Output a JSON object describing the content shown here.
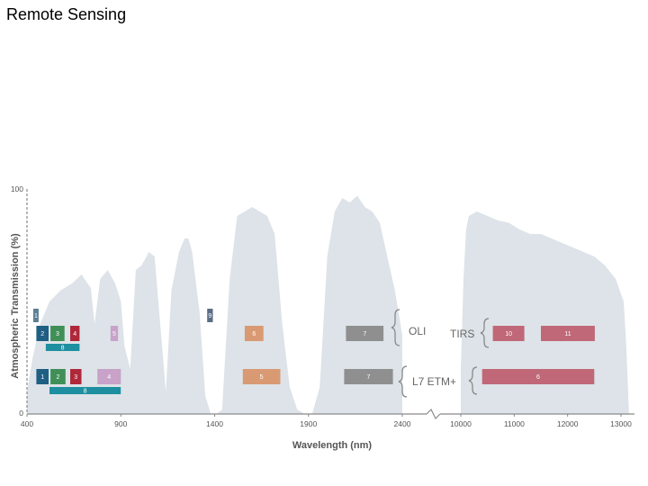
{
  "slide": {
    "title": "Remote Sensing"
  },
  "chart_data": {
    "type": "area",
    "title": "",
    "xlabel": "Wavelength (nm)",
    "ylabel": "Atmospheric Transmission (%)",
    "ylim": [
      0,
      100
    ],
    "y_ticks": [
      "100",
      "0"
    ],
    "x_ticks": [
      "400",
      "900",
      "1400",
      "1900",
      "2400",
      "10000",
      "11000",
      "12000",
      "13000"
    ],
    "x_axis_break": "between 2400 and 10000",
    "colors": {
      "transmission": "#dde3e8",
      "axis": "#8a8a8a"
    },
    "groups": [
      {
        "name": "OLI",
        "row": "top"
      },
      {
        "name": "TIRS",
        "row": "top"
      },
      {
        "name": "L7 ETM+",
        "row": "bottom"
      }
    ],
    "bands": [
      {
        "label": "1",
        "sensor": "OLI",
        "start": 433,
        "end": 453,
        "row": 0,
        "color": "#5b7f95"
      },
      {
        "label": "2",
        "sensor": "OLI",
        "start": 450,
        "end": 515,
        "row": 1,
        "color": "#1f5f83"
      },
      {
        "label": "3",
        "sensor": "OLI",
        "start": 525,
        "end": 600,
        "row": 1,
        "color": "#3f8f57"
      },
      {
        "label": "4",
        "sensor": "OLI",
        "start": 630,
        "end": 680,
        "row": 1,
        "color": "#b0273a"
      },
      {
        "label": "5",
        "sensor": "OLI",
        "start": 845,
        "end": 885,
        "row": 1,
        "color": "#c8a2c8"
      },
      {
        "label": "8",
        "sensor": "OLI",
        "start": 500,
        "end": 680,
        "row": 2,
        "color": "#1d8fa0"
      },
      {
        "label": "9",
        "sensor": "OLI",
        "start": 1360,
        "end": 1390,
        "row": 0,
        "color": "#5b6d85"
      },
      {
        "label": "6",
        "sensor": "OLI",
        "start": 1560,
        "end": 1660,
        "row": 1,
        "color": "#d99a73"
      },
      {
        "label": "7",
        "sensor": "OLI",
        "start": 2100,
        "end": 2300,
        "row": 1,
        "color": "#8f8f8f"
      },
      {
        "label": "10",
        "sensor": "TIRS",
        "start": 10600,
        "end": 11190,
        "row": 1,
        "color": "#c06878"
      },
      {
        "label": "11",
        "sensor": "TIRS",
        "start": 11500,
        "end": 12510,
        "row": 1,
        "color": "#c06878"
      },
      {
        "label": "1",
        "sensor": "L7 ETM+",
        "start": 450,
        "end": 515,
        "row": 3,
        "color": "#1f5f83"
      },
      {
        "label": "2",
        "sensor": "L7 ETM+",
        "start": 525,
        "end": 605,
        "row": 3,
        "color": "#3f8f57"
      },
      {
        "label": "3",
        "sensor": "L7 ETM+",
        "start": 630,
        "end": 690,
        "row": 3,
        "color": "#b0273a"
      },
      {
        "label": "4",
        "sensor": "L7 ETM+",
        "start": 775,
        "end": 900,
        "row": 3,
        "color": "#c8a2c8"
      },
      {
        "label": "8",
        "sensor": "L7 ETM+",
        "start": 520,
        "end": 900,
        "row": 4,
        "color": "#1d8fa0"
      },
      {
        "label": "5",
        "sensor": "L7 ETM+",
        "start": 1550,
        "end": 1750,
        "row": 3,
        "color": "#d99a73"
      },
      {
        "label": "7",
        "sensor": "L7 ETM+",
        "start": 2090,
        "end": 2350,
        "row": 3,
        "color": "#8f8f8f"
      },
      {
        "label": "6",
        "sensor": "L7 ETM+",
        "start": 10400,
        "end": 12500,
        "row": 3,
        "color": "#c06878"
      }
    ]
  }
}
